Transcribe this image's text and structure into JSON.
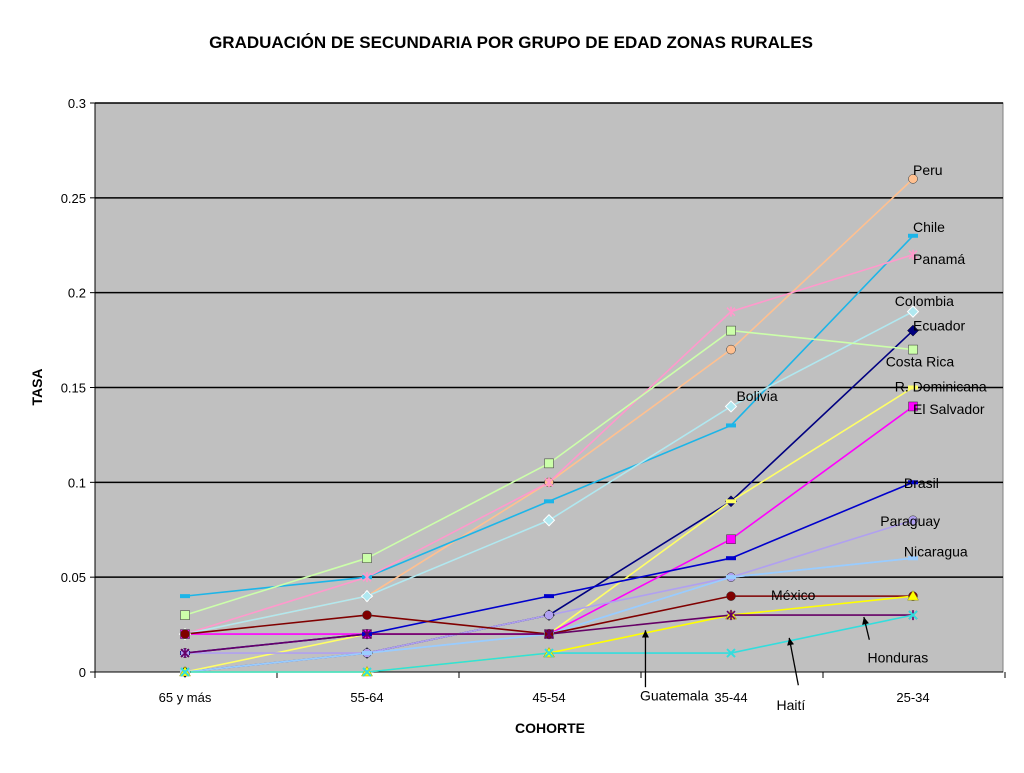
{
  "chart_data": {
    "type": "line",
    "title": "GRADUACIÓN DE SECUNDARIA POR GRUPO DE EDAD ZONAS RURALES",
    "xlabel": "COHORTE",
    "ylabel": "TASA",
    "categories": [
      "65 y más",
      "55-64",
      "45-54",
      "35-44",
      "25-34"
    ],
    "ylim": [
      0,
      0.3
    ],
    "yticks": [
      "0",
      "0.05",
      "0.1",
      "0.15",
      "0.2",
      "0.25",
      "0.3"
    ],
    "grid": true,
    "plot_background": "#c0c0c0",
    "series": [
      {
        "name": "Peru",
        "color": "#ffc090",
        "marker": "circle",
        "values": [
          0.02,
          0.04,
          0.1,
          0.17,
          0.26
        ]
      },
      {
        "name": "Chile",
        "color": "#1cb5e8",
        "marker": "dash",
        "values": [
          0.04,
          0.05,
          0.09,
          0.13,
          0.23
        ]
      },
      {
        "name": "Panamá",
        "color": "#ff99cc",
        "marker": "star",
        "values": [
          0.02,
          0.05,
          0.1,
          0.19,
          0.22
        ]
      },
      {
        "name": "Colombia",
        "color": "#b0e8f0",
        "marker": "diamond-open",
        "values": [
          0.02,
          0.04,
          0.08,
          0.14,
          0.19
        ]
      },
      {
        "name": "Ecuador",
        "color": "#000080",
        "marker": "diamond",
        "values": [
          0.0,
          0.01,
          0.03,
          0.09,
          0.18
        ]
      },
      {
        "name": "Costa Rica",
        "color": "#ccffaa",
        "marker": "square",
        "values": [
          0.03,
          0.06,
          0.11,
          0.18,
          0.17
        ]
      },
      {
        "name": "R. Dominicana",
        "color": "#ffff66",
        "marker": "dash",
        "values": [
          0.0,
          0.02,
          0.02,
          0.09,
          0.15
        ]
      },
      {
        "name": "El Salvador",
        "color": "#ff00ff",
        "marker": "square",
        "values": [
          0.02,
          0.02,
          0.02,
          0.07,
          0.14
        ]
      },
      {
        "name": "Bolivia",
        "color": "#99ccff",
        "marker": "dash",
        "values": [
          0.0,
          0.01,
          0.02,
          0.05,
          0.06
        ]
      },
      {
        "name": "Brasil",
        "color": "#0000cc",
        "marker": "dash",
        "values": [
          0.01,
          0.02,
          0.04,
          0.06,
          0.1
        ]
      },
      {
        "name": "Paraguay",
        "color": "#b0a0f0",
        "marker": "circle",
        "values": [
          0.01,
          0.01,
          0.03,
          0.05,
          0.08
        ]
      },
      {
        "name": "Nicaragua",
        "color": "#99ccff",
        "marker": "dash",
        "values": [
          0.0,
          0.01,
          0.02,
          0.05,
          0.06
        ]
      },
      {
        "name": "México",
        "color": "#800000",
        "marker": "circle",
        "values": [
          0.02,
          0.03,
          0.02,
          0.04,
          0.04
        ]
      },
      {
        "name": "Guatemala",
        "color": "#ffff00",
        "marker": "triangle",
        "values": [
          0.0,
          0.0,
          0.01,
          0.03,
          0.04
        ]
      },
      {
        "name": "Honduras",
        "color": "#660066",
        "marker": "star",
        "values": [
          0.01,
          0.02,
          0.02,
          0.03,
          0.03
        ]
      },
      {
        "name": "Haití",
        "color": "#33dddd",
        "marker": "x",
        "values": [
          0.0,
          0.0,
          0.01,
          0.01,
          0.03
        ]
      }
    ],
    "labels": [
      {
        "name": "Peru",
        "text": "Peru",
        "at": [
          4,
          0.262
        ]
      },
      {
        "name": "Chile",
        "text": "Chile",
        "at": [
          4,
          0.232
        ]
      },
      {
        "name": "Panamá",
        "text": "Panamá",
        "at": [
          4,
          0.215
        ]
      },
      {
        "name": "Colombia",
        "text": "Colombia",
        "at": [
          3.9,
          0.193
        ]
      },
      {
        "name": "Ecuador",
        "text": "Ecuador",
        "at": [
          4,
          0.18
        ]
      },
      {
        "name": "Costa Rica",
        "text": "Costa Rica",
        "at": [
          3.85,
          0.161
        ]
      },
      {
        "name": "R. Dominicana",
        "text": "R. Dominicana",
        "at": [
          3.9,
          0.148
        ]
      },
      {
        "name": "El Salvador",
        "text": "El Salvador",
        "at": [
          4,
          0.136
        ]
      },
      {
        "name": "Bolivia",
        "text": "Bolivia",
        "at": [
          3.03,
          0.143
        ]
      },
      {
        "name": "Brasil",
        "text": "Brasil",
        "at": [
          3.95,
          0.097
        ]
      },
      {
        "name": "Paraguay",
        "text": "Paraguay",
        "at": [
          3.82,
          0.077
        ]
      },
      {
        "name": "Nicaragua",
        "text": "Nicaragua",
        "at": [
          3.95,
          0.061
        ]
      },
      {
        "name": "México",
        "text": "México",
        "at": [
          3.22,
          0.038
        ]
      },
      {
        "name": "Honduras",
        "text": "Honduras",
        "at": [
          3.75,
          0.005
        ]
      },
      {
        "name": "Guatemala",
        "text": "Guatemala",
        "at": [
          2.5,
          -0.015
        ]
      },
      {
        "name": "Haití",
        "text": "Haití",
        "at": [
          3.25,
          -0.02
        ]
      }
    ],
    "arrows": [
      {
        "name": "Guatemala",
        "from": [
          2.53,
          -0.008
        ],
        "to": [
          2.53,
          0.022
        ]
      },
      {
        "name": "Haití",
        "from": [
          3.37,
          -0.007
        ],
        "to": [
          3.32,
          0.018
        ]
      },
      {
        "name": "Honduras",
        "from": [
          3.76,
          0.017
        ],
        "to": [
          3.73,
          0.029
        ]
      }
    ]
  }
}
